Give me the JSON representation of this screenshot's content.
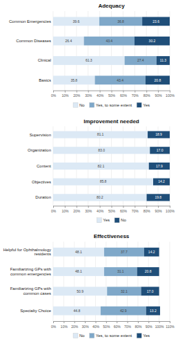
{
  "chart_data": [
    {
      "type": "bar",
      "orientation": "horizontal",
      "stacked": true,
      "title": "Adequacy",
      "categories": [
        "Basics",
        "Clinical",
        "Common Diseases",
        "Common Emergencies"
      ],
      "series": [
        {
          "name": "No",
          "color": "#dce9f5",
          "values": [
            35.8,
            61.3,
            26.4,
            39.6
          ]
        },
        {
          "name": "Yes, to some extent",
          "color": "#7fa8c9",
          "values": [
            43.4,
            27.4,
            43.4,
            36.8
          ]
        },
        {
          "name": "Yes",
          "color": "#1f4e79",
          "values": [
            20.8,
            11.3,
            30.2,
            23.6
          ]
        }
      ],
      "xlim": [
        0,
        100
      ],
      "xticks": [
        {
          "value": 0,
          "label": "0%"
        },
        {
          "value": 10,
          "label": "10%"
        },
        {
          "value": 20,
          "label": "20%"
        },
        {
          "value": 30,
          "label": "30%"
        },
        {
          "value": 40,
          "label": "40%"
        },
        {
          "value": 50,
          "label": "50%"
        },
        {
          "value": 60,
          "label": "60%"
        },
        {
          "value": 70,
          "label": "70%"
        },
        {
          "value": 80,
          "label": "80%"
        },
        {
          "value": 90,
          "label": "90%"
        },
        {
          "value": 100,
          "label": "100%"
        }
      ],
      "grid": true,
      "legend": "bottom",
      "data_labels": true
    },
    {
      "type": "bar",
      "orientation": "horizontal",
      "stacked": true,
      "title": "Improvement needed",
      "categories": [
        "Duration",
        "Objectives",
        "Content",
        "Organization",
        "Supervision"
      ],
      "series": [
        {
          "name": "Yes",
          "color": "#dce9f5",
          "values": [
            80.2,
            85.8,
            82.1,
            83.0,
            81.1
          ],
          "value_labels": [
            "80.2",
            "85.8",
            "82.1",
            "83.0",
            "81.1"
          ]
        },
        {
          "name": "No",
          "color": "#1f4e79",
          "values": [
            19.8,
            14.2,
            17.9,
            17.0,
            18.9
          ],
          "value_labels": [
            "19.8",
            "14.2",
            "17.9",
            "17.0",
            "18.9"
          ]
        }
      ],
      "xlim": [
        0,
        100
      ],
      "xticks": [
        {
          "value": 0,
          "label": "0%"
        },
        {
          "value": 10,
          "label": "10%"
        },
        {
          "value": 20,
          "label": "20%"
        },
        {
          "value": 30,
          "label": "30%"
        },
        {
          "value": 40,
          "label": "40%"
        },
        {
          "value": 50,
          "label": "50%"
        },
        {
          "value": 60,
          "label": "60%"
        },
        {
          "value": 70,
          "label": "70%"
        },
        {
          "value": 80,
          "label": "80%"
        },
        {
          "value": 90,
          "label": "90%"
        },
        {
          "value": 100,
          "label": "100%"
        }
      ],
      "grid": true,
      "legend": "bottom",
      "data_labels": true
    },
    {
      "type": "bar",
      "orientation": "horizontal",
      "stacked": true,
      "title": "Effectiveness",
      "categories": [
        "Specialty Choice",
        "Familiarizing GPs with\ncommon cases",
        "Familiarizing GPs with\ncommon emergencies",
        "Helpful for Ophthalmology\nresidents"
      ],
      "series": [
        {
          "name": "No",
          "color": "#dce9f5",
          "values": [
            44.8,
            50.9,
            48.1,
            48.1
          ]
        },
        {
          "name": "Yes, to some extent",
          "color": "#7fa8c9",
          "values": [
            42.9,
            32.1,
            31.1,
            37.7
          ]
        },
        {
          "name": "Yes",
          "color": "#1f4e79",
          "values": [
            13.2,
            17.0,
            20.8,
            14.2
          ],
          "value_labels": [
            "13.2",
            "17.0",
            "20.8",
            "14.2"
          ]
        }
      ],
      "xlim": [
        0,
        110
      ],
      "xticks": [
        {
          "value": 0,
          "label": "0%"
        },
        {
          "value": 10,
          "label": "10%"
        },
        {
          "value": 20,
          "label": "20%"
        },
        {
          "value": 30,
          "label": "30%"
        },
        {
          "value": 40,
          "label": "40%"
        },
        {
          "value": 50,
          "label": "50%"
        },
        {
          "value": 60,
          "label": "60%"
        },
        {
          "value": 70,
          "label": "70%"
        },
        {
          "value": 80,
          "label": "80%"
        },
        {
          "value": 90,
          "label": "90%"
        },
        {
          "value": 100,
          "label": "100%"
        },
        {
          "value": 110,
          "label": "110%"
        }
      ],
      "grid": true,
      "legend": "bottom",
      "data_labels": true
    }
  ]
}
